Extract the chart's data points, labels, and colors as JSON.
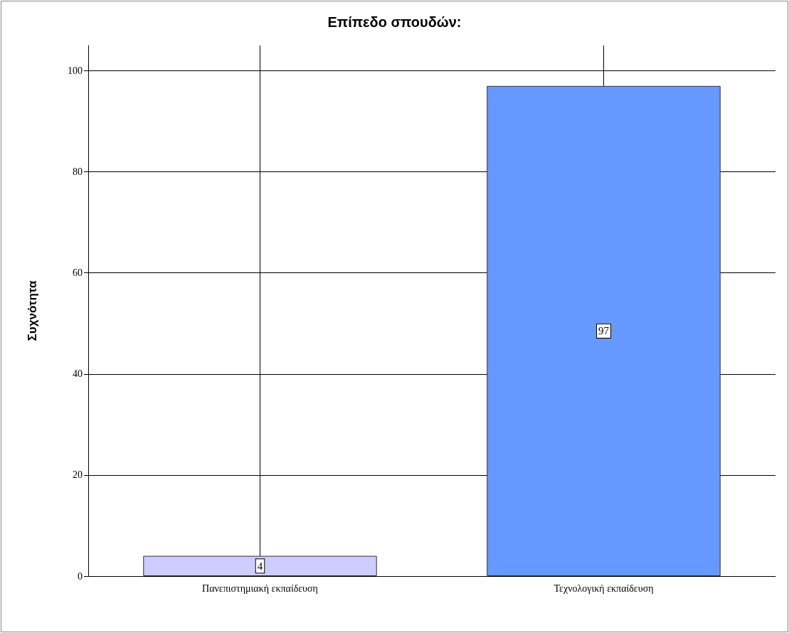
{
  "chart_data": {
    "type": "bar",
    "title": "Επίπεδο σπουδών:",
    "ylabel": "Συχνότητα",
    "categories": [
      "Πανεπιστημιακή εκπαίδευση",
      "Τεχνολογική εκπαίδευση"
    ],
    "values": [
      4,
      97
    ],
    "colors": [
      "#ccccff",
      "#6699ff"
    ],
    "ylim": [
      0,
      105
    ],
    "yticks": [
      0,
      20,
      40,
      60,
      80,
      100
    ],
    "grid": true,
    "data_labels": true
  }
}
